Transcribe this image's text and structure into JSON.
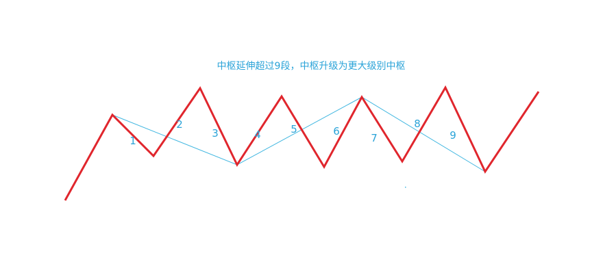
{
  "title": "中枢延伸超过9段，中枢升级为更大级别中枢",
  "colors": {
    "price_line": "#e0262d",
    "center_line": "#3fb6e0",
    "text": "#2aa3d8",
    "background": "#ffffff"
  },
  "segment_labels": [
    "1",
    "2",
    "3",
    "4",
    "5",
    "6",
    "7",
    "8",
    "9"
  ]
}
